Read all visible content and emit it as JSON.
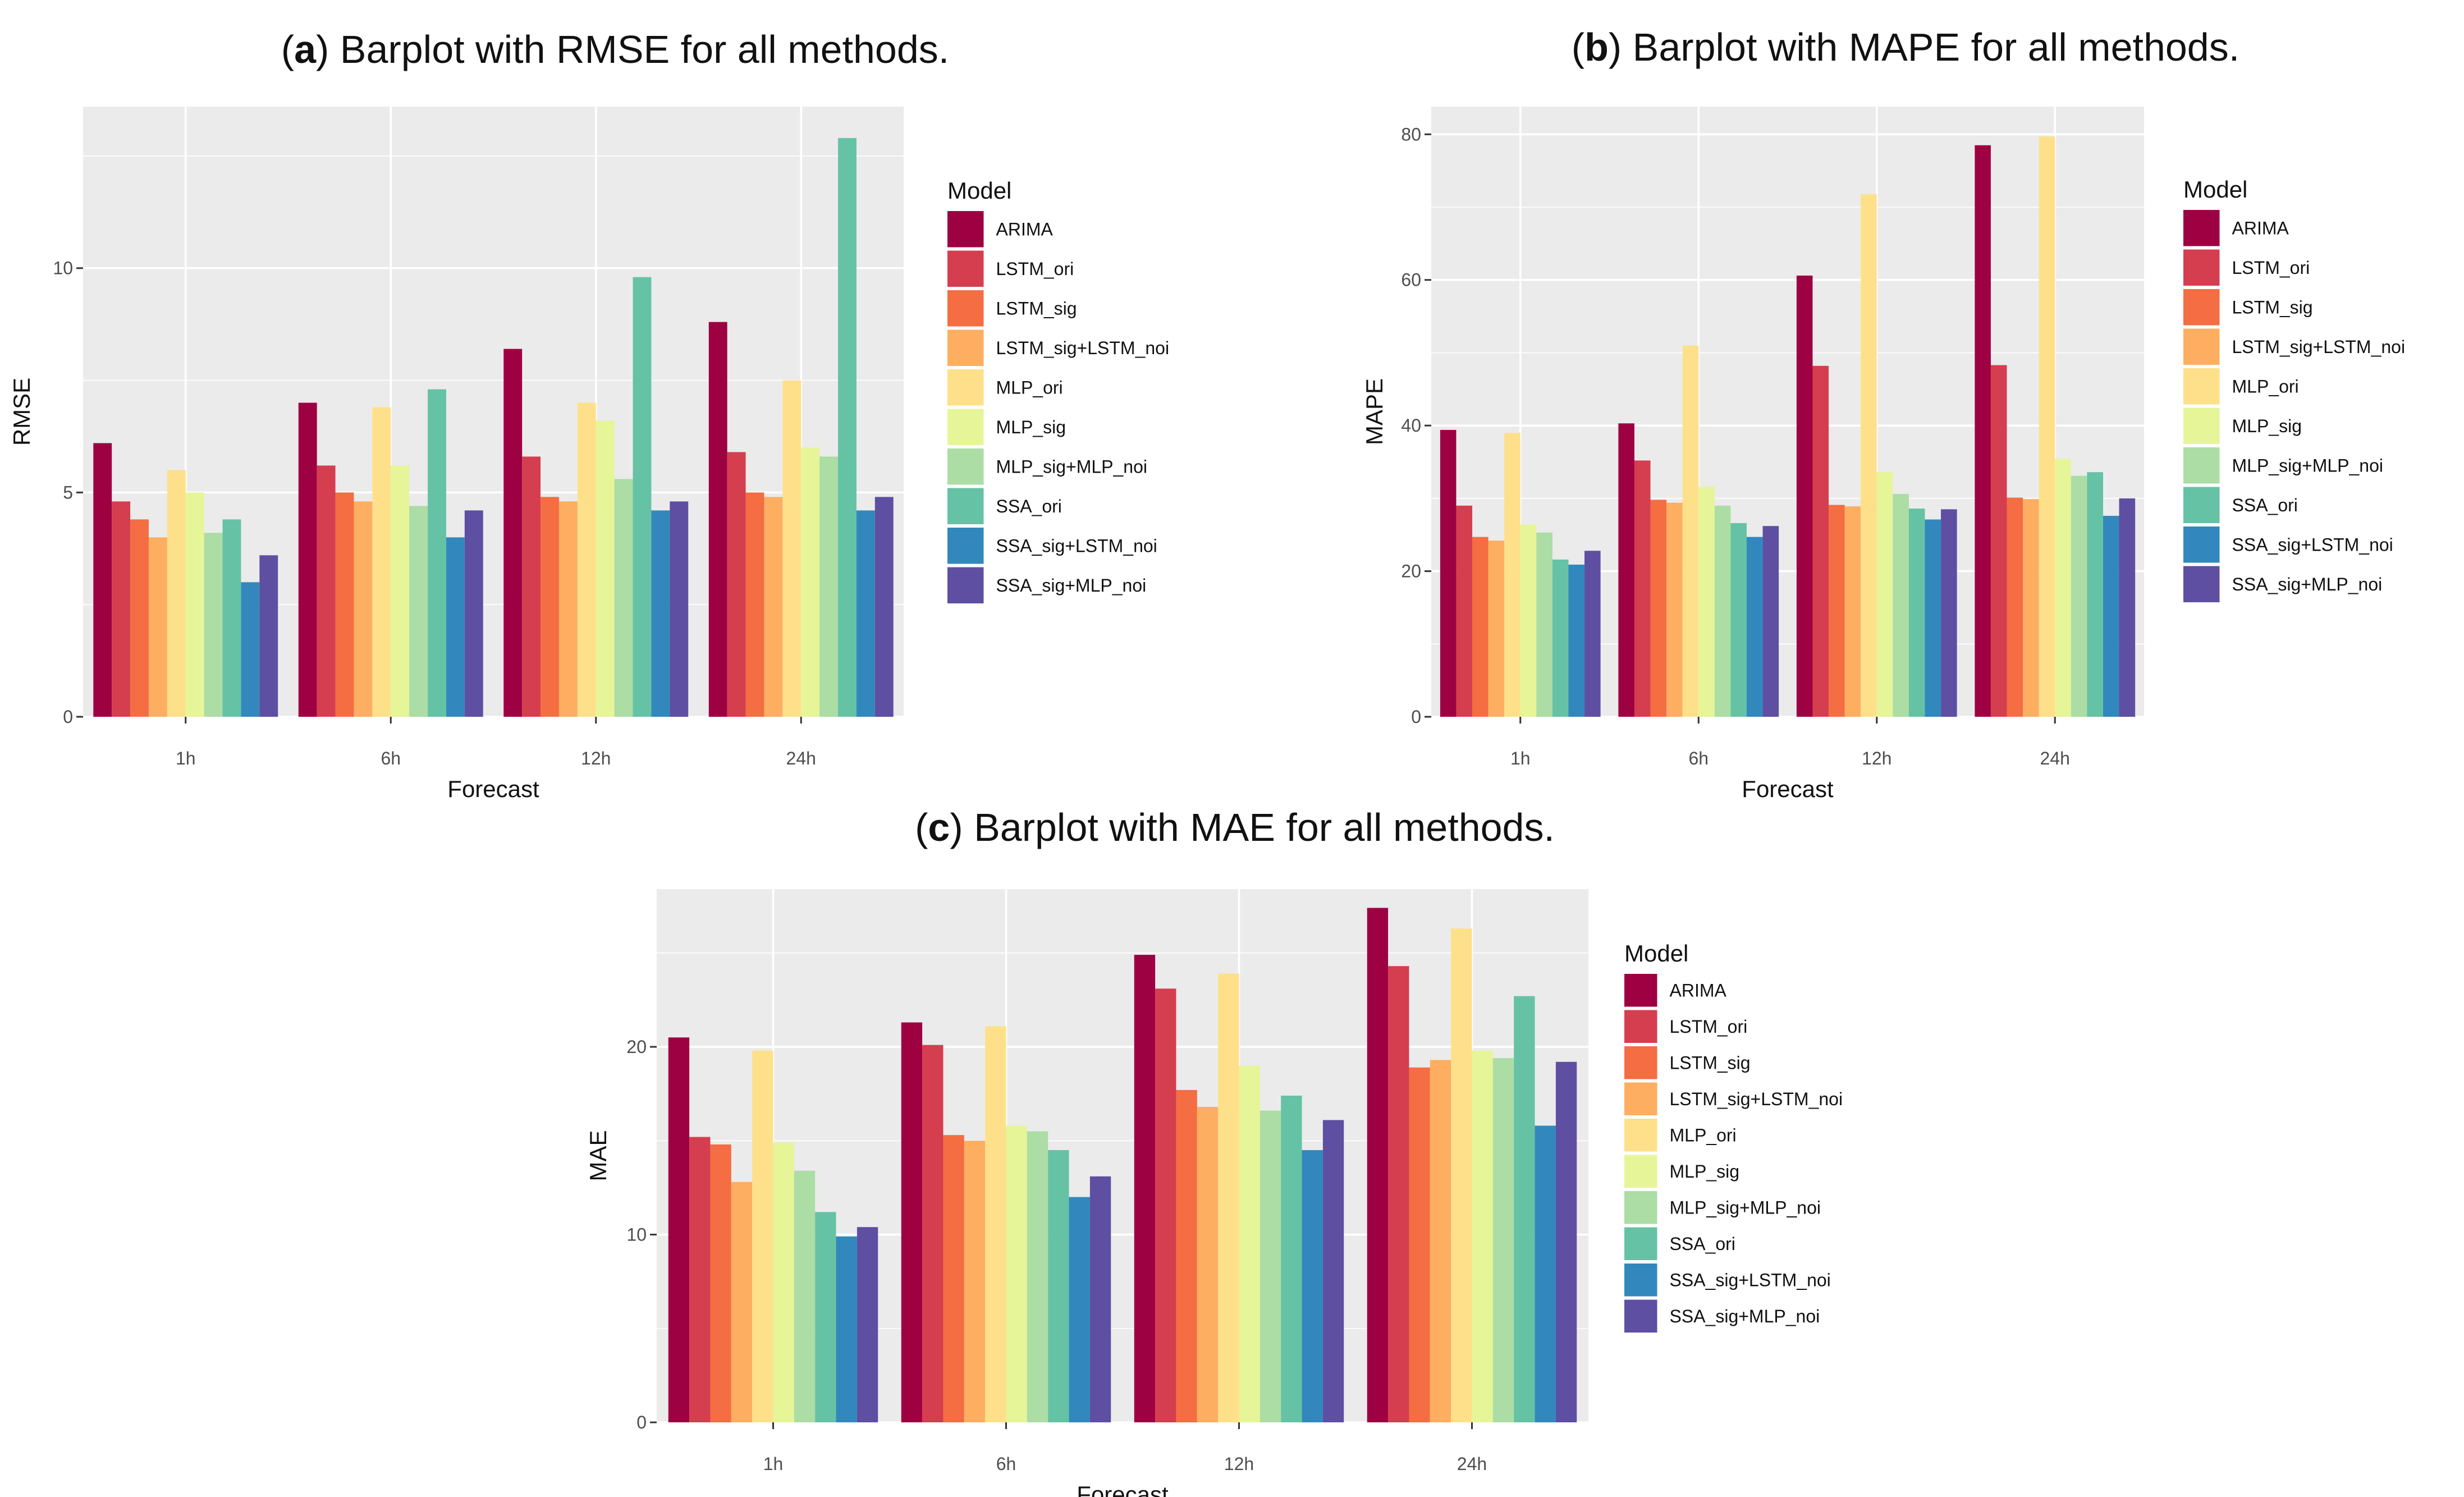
{
  "legend_title": "Model",
  "models": [
    {
      "name": "ARIMA",
      "color": "#9E0142"
    },
    {
      "name": "LSTM_ori",
      "color": "#D53E4F"
    },
    {
      "name": "LSTM_sig",
      "color": "#F46D43"
    },
    {
      "name": "LSTM_sig+LSTM_noi",
      "color": "#FDAE61"
    },
    {
      "name": "MLP_ori",
      "color": "#FEE08B"
    },
    {
      "name": "MLP_sig",
      "color": "#E6F598"
    },
    {
      "name": "MLP_sig+MLP_noi",
      "color": "#ABDDA4"
    },
    {
      "name": "SSA_ori",
      "color": "#66C2A5"
    },
    {
      "name": "SSA_sig+LSTM_noi",
      "color": "#3288BD"
    },
    {
      "name": "SSA_sig+MLP_noi",
      "color": "#5E4FA2"
    }
  ],
  "chart_data": [
    {
      "type": "bar",
      "caption_prefix": "(",
      "caption_letter": "a",
      "caption_text": ") Barplot with RMSE for all methods.",
      "xlabel": "Forecast",
      "ylabel": "RMSE",
      "categories": [
        "1h",
        "6h",
        "12h",
        "24h"
      ],
      "ylim": [
        0,
        13.6
      ],
      "yticks": [
        0,
        5,
        10
      ],
      "ytick_labels": [
        "0",
        "5",
        "10"
      ],
      "series": [
        {
          "name": "ARIMA",
          "values": [
            6.1,
            7.0,
            8.2,
            8.8
          ]
        },
        {
          "name": "LSTM_ori",
          "values": [
            4.8,
            5.6,
            5.8,
            5.9
          ]
        },
        {
          "name": "LSTM_sig",
          "values": [
            4.4,
            5.0,
            4.9,
            5.0
          ]
        },
        {
          "name": "LSTM_sig+LSTM_noi",
          "values": [
            4.0,
            4.8,
            4.8,
            4.9
          ]
        },
        {
          "name": "MLP_ori",
          "values": [
            5.5,
            6.9,
            7.0,
            7.5
          ]
        },
        {
          "name": "MLP_sig",
          "values": [
            5.0,
            5.6,
            6.6,
            6.0
          ]
        },
        {
          "name": "MLP_sig+MLP_noi",
          "values": [
            4.1,
            4.7,
            5.3,
            5.8
          ]
        },
        {
          "name": "SSA_ori",
          "values": [
            4.4,
            7.3,
            9.8,
            12.9
          ]
        },
        {
          "name": "SSA_sig+LSTM_noi",
          "values": [
            3.0,
            4.0,
            4.6,
            4.6
          ]
        },
        {
          "name": "SSA_sig+MLP_noi",
          "values": [
            3.6,
            4.6,
            4.8,
            4.9
          ]
        }
      ]
    },
    {
      "type": "bar",
      "caption_prefix": "(",
      "caption_letter": "b",
      "caption_text": ") Barplot with MAPE for all methods.",
      "xlabel": "Forecast",
      "ylabel": "MAPE",
      "categories": [
        "1h",
        "6h",
        "12h",
        "24h"
      ],
      "ylim": [
        0,
        83.8
      ],
      "yticks": [
        0,
        20,
        40,
        60,
        80
      ],
      "ytick_labels": [
        "0",
        "20",
        "40",
        "60",
        "80"
      ],
      "series": [
        {
          "name": "ARIMA",
          "values": [
            39.4,
            40.3,
            60.6,
            78.5
          ]
        },
        {
          "name": "LSTM_ori",
          "values": [
            29.0,
            35.2,
            48.2,
            48.3
          ]
        },
        {
          "name": "LSTM_sig",
          "values": [
            24.7,
            29.8,
            29.1,
            30.1
          ]
        },
        {
          "name": "LSTM_sig+LSTM_noi",
          "values": [
            24.2,
            29.4,
            28.9,
            29.9
          ]
        },
        {
          "name": "MLP_ori",
          "values": [
            39.0,
            51.0,
            71.8,
            79.7
          ]
        },
        {
          "name": "MLP_sig",
          "values": [
            26.4,
            31.6,
            33.6,
            35.4
          ]
        },
        {
          "name": "MLP_sig+MLP_noi",
          "values": [
            25.3,
            29.0,
            30.6,
            33.1
          ]
        },
        {
          "name": "SSA_ori",
          "values": [
            21.6,
            26.6,
            28.6,
            33.6
          ]
        },
        {
          "name": "SSA_sig+LSTM_noi",
          "values": [
            20.9,
            24.7,
            27.1,
            27.6
          ]
        },
        {
          "name": "SSA_sig+MLP_noi",
          "values": [
            22.8,
            26.2,
            28.5,
            30.0
          ]
        }
      ]
    },
    {
      "type": "bar",
      "caption_prefix": "(",
      "caption_letter": "c",
      "caption_text": ") Barplot with MAE for all methods.",
      "xlabel": "Forecast",
      "ylabel": "MAE",
      "categories": [
        "1h",
        "6h",
        "12h",
        "24h"
      ],
      "ylim": [
        0,
        28.4
      ],
      "yticks": [
        0,
        10,
        20
      ],
      "ytick_labels": [
        "0",
        "10",
        "20"
      ],
      "series": [
        {
          "name": "ARIMA",
          "values": [
            20.5,
            21.3,
            24.9,
            27.4
          ]
        },
        {
          "name": "LSTM_ori",
          "values": [
            15.2,
            20.1,
            23.1,
            24.3
          ]
        },
        {
          "name": "LSTM_sig",
          "values": [
            14.8,
            15.3,
            17.7,
            18.9
          ]
        },
        {
          "name": "LSTM_sig+LSTM_noi",
          "values": [
            12.8,
            15.0,
            16.8,
            19.3
          ]
        },
        {
          "name": "MLP_ori",
          "values": [
            19.8,
            21.1,
            23.9,
            26.3
          ]
        },
        {
          "name": "MLP_sig",
          "values": [
            14.9,
            15.8,
            19.0,
            19.8
          ]
        },
        {
          "name": "MLP_sig+MLP_noi",
          "values": [
            13.4,
            15.5,
            16.6,
            19.4
          ]
        },
        {
          "name": "SSA_ori",
          "values": [
            11.2,
            14.5,
            17.4,
            22.7
          ]
        },
        {
          "name": "SSA_sig+LSTM_noi",
          "values": [
            9.9,
            12.0,
            14.5,
            15.8
          ]
        },
        {
          "name": "SSA_sig+MLP_noi",
          "values": [
            10.4,
            13.1,
            16.1,
            19.2
          ]
        }
      ]
    }
  ]
}
